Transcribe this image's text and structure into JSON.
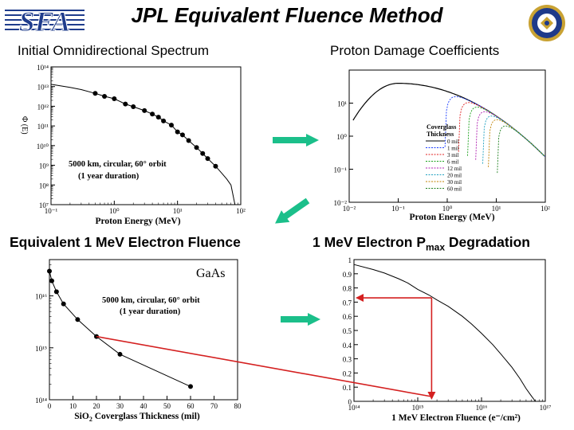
{
  "header": {
    "title": "JPL Equivalent Fluence Method",
    "logo_text": "SFA",
    "seal_icon": "dod-seal-icon"
  },
  "panels": {
    "p1_title": "Initial Omnidirectional Spectrum",
    "p2_title": "Proton Damage Coefficients",
    "p3_title": "Equivalent 1 MeV Electron Fluence",
    "p4_title_main": "1 MeV Electron P",
    "p4_title_sub": "max",
    "p4_title_end": " Degradation"
  },
  "colors": {
    "arrow": "#1bbf8a",
    "red_line": "#d42020",
    "chart_line": "#000000"
  },
  "chart_data": [
    {
      "type": "line",
      "id": "spectrum",
      "xlabel": "Proton Energy (MeV)",
      "ylabel_glyphs": "Φ (E)",
      "x_scale": "log",
      "y_scale": "log",
      "xlim": [
        0.1,
        100
      ],
      "ylim": [
        10000000,
        100000000000000
      ],
      "x_ticks": [
        "10⁻¹",
        "10⁰",
        "10¹",
        "10²"
      ],
      "y_ticks": [
        "10⁷",
        "10⁸",
        "10⁹",
        "10¹⁰",
        "10¹¹",
        "10¹²",
        "10¹³",
        "10¹⁴"
      ],
      "annotation_1": "5000 km, circular, 60° orbit",
      "annotation_2": "(1 year duration)",
      "x": [
        0.1,
        0.2,
        0.3,
        0.5,
        0.7,
        1.0,
        1.5,
        2,
        3,
        4,
        5,
        6,
        8,
        10,
        12,
        15,
        20,
        25,
        30,
        40,
        50,
        60,
        70
      ],
      "y": [
        13000000000000.0,
        9000000000000.0,
        7000000000000.0,
        4500000000000.0,
        3200000000000.0,
        2400000000000.0,
        1300000000000.0,
        950000000000.0,
        600000000000.0,
        400000000000.0,
        280000000000.0,
        180000000000.0,
        110000000000.0,
        50000000000.0,
        35000000000.0,
        18000000000.0,
        8000000000.0,
        4000000000.0,
        2200000000.0,
        900000000.0,
        400000000.0,
        200000000.0,
        100000000.0
      ],
      "marker_x": [
        0.5,
        0.7,
        1.0,
        1.5,
        2,
        3,
        4,
        5,
        6,
        8,
        10,
        12,
        15,
        20,
        25,
        30,
        40
      ]
    },
    {
      "type": "line",
      "id": "damage",
      "xlabel": "Proton Energy (MeV)",
      "x_scale": "log",
      "y_scale": "log",
      "xlim": [
        0.01,
        100
      ],
      "ylim": [
        0.01,
        100
      ],
      "x_ticks": [
        "10⁻²",
        "10⁻¹",
        "10⁰",
        "10¹",
        "10²"
      ],
      "y_ticks": [
        "10⁻²",
        "10⁻¹",
        "10⁰",
        "10¹"
      ],
      "legend_title_1": "Coverglass",
      "legend_title_2": "Thickness",
      "legend_placement": "center-right",
      "series": [
        {
          "name": "0 mil",
          "color": "#000000",
          "cutoff": 0.01
        },
        {
          "name": "1 mil",
          "color": "#1a3cff",
          "cutoff": 0.9
        },
        {
          "name": "3 mil",
          "color": "#e02020",
          "cutoff": 1.7
        },
        {
          "name": "6 mil",
          "color": "#1aa01a",
          "cutoff": 2.6
        },
        {
          "name": "12 mil",
          "color": "#b020b0",
          "cutoff": 3.8
        },
        {
          "name": "20 mil",
          "color": "#20a0c0",
          "cutoff": 5.3
        },
        {
          "name": "30 mil",
          "color": "#c08000",
          "cutoff": 6.9
        },
        {
          "name": "60 mil",
          "color": "#208020",
          "cutoff": 10.5
        }
      ]
    },
    {
      "type": "line",
      "id": "fluence",
      "title": "GaAs",
      "xlabel_a": "SiO",
      "xlabel_sub": "2",
      "xlabel_b": " Coverglass Thickness (mil)",
      "x_scale": "linear",
      "y_scale": "log",
      "xlim": [
        0,
        80
      ],
      "ylim": [
        100000000000000,
        50000000000000000
      ],
      "x_ticks": [
        "0",
        "10",
        "20",
        "30",
        "40",
        "50",
        "60",
        "70",
        "80"
      ],
      "y_ticks": [
        "10¹⁴",
        "10¹⁵",
        "10¹⁶"
      ],
      "annotation_1": "5000 km, circular, 60° orbit",
      "annotation_2": "(1 year duration)",
      "x": [
        0,
        1,
        3,
        6,
        12,
        20,
        30,
        60
      ],
      "y": [
        3e+16,
        1.95e+16,
        1.2e+16,
        7000000000000000.0,
        3500000000000000.0,
        1650000000000000.0,
        750000000000000.0,
        180000000000000.0
      ]
    },
    {
      "type": "line",
      "id": "degradation",
      "xlabel": "1 MeV Electron Fluence (e⁻/cm²)",
      "x_scale": "log",
      "y_scale": "linear",
      "xlim": [
        100000000000000,
        100000000000000000
      ],
      "ylim": [
        0,
        1.0
      ],
      "x_ticks": [
        "10¹⁴",
        "10¹⁵",
        "10¹⁶",
        "10¹⁷"
      ],
      "y_ticks": [
        "0",
        "0.1",
        "0.2",
        "0.3",
        "0.4",
        "0.5",
        "0.6",
        "0.7",
        "0.8",
        "0.9",
        "1"
      ],
      "x": [
        100000000000000.0,
        200000000000000.0,
        300000000000000.0,
        500000000000000.0,
        700000000000000.0,
        1000000000000000.0,
        1500000000000000.0,
        2000000000000000.0,
        3000000000000000.0,
        5000000000000000.0,
        7000000000000000.0,
        1e+16,
        1.5e+16,
        2e+16,
        3e+16,
        4e+16,
        5e+16,
        6e+16,
        7e+16
      ],
      "y": [
        0.965,
        0.93,
        0.905,
        0.865,
        0.835,
        0.79,
        0.75,
        0.715,
        0.67,
        0.6,
        0.545,
        0.48,
        0.4,
        0.335,
        0.24,
        0.16,
        0.09,
        0.04,
        0.0
      ],
      "operating_point": {
        "x": 1650000000000000.0,
        "y": 0.73
      }
    }
  ]
}
